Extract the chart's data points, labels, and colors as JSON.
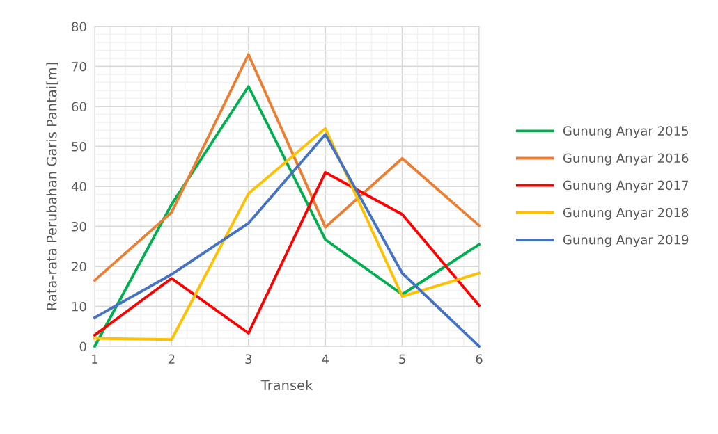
{
  "chart_data": {
    "type": "line",
    "xlabel": "Transek",
    "ylabel": "Rata-rata Perubahan Garis Pantai[m]",
    "x": [
      1,
      2,
      3,
      4,
      5,
      6
    ],
    "series": [
      {
        "name": "Gunung Anyar 2015",
        "color": "#00b050",
        "values": [
          0,
          35.5,
          65,
          26.7,
          13,
          25.5
        ]
      },
      {
        "name": "Gunung Anyar 2016",
        "color": "#ed7d31",
        "values": [
          16.5,
          33.5,
          73,
          29.8,
          47,
          30.2
        ]
      },
      {
        "name": "Gunung Anyar 2017",
        "color": "#ff0000",
        "values": [
          2.8,
          17,
          3.3,
          43.5,
          33,
          10.2
        ]
      },
      {
        "name": "Gunung Anyar 2018",
        "color": "#ffc000",
        "values": [
          2,
          1.7,
          38.2,
          54.5,
          12.5,
          18.3
        ]
      },
      {
        "name": "Gunung Anyar 2019",
        "color": "#4472c4",
        "values": [
          7.2,
          18,
          30.8,
          53,
          18.3,
          0
        ]
      }
    ],
    "xlim": [
      1,
      6
    ],
    "xticks": [
      1,
      2,
      3,
      4,
      5,
      6
    ],
    "ylim": [
      0,
      80
    ],
    "yticks": [
      0,
      10,
      20,
      30,
      40,
      50,
      60,
      70,
      80
    ],
    "grid": true,
    "legend": "right",
    "marker": "none",
    "line_style": "solid"
  }
}
